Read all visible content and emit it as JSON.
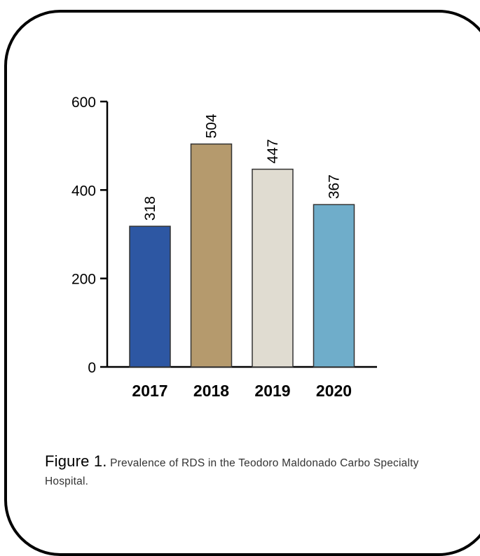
{
  "chart_data": {
    "type": "bar",
    "categories": [
      "2017",
      "2018",
      "2019",
      "2020"
    ],
    "values": [
      318,
      504,
      447,
      367
    ],
    "data_labels": [
      "318",
      "504",
      "447",
      "367"
    ],
    "colors": [
      "#2d57a3",
      "#b59a6d",
      "#e0dcd1",
      "#6fadca"
    ],
    "bar_stroke": "#333333",
    "yticks": [
      "0",
      "200",
      "400",
      "600"
    ],
    "ylim": [
      0,
      600
    ],
    "title": "",
    "xlabel": "",
    "ylabel": "",
    "grid": false
  },
  "caption": {
    "label": "Figure 1.",
    "text": "Prevalence of RDS in the Teodoro Maldonado Carbo Specialty Hospital."
  }
}
